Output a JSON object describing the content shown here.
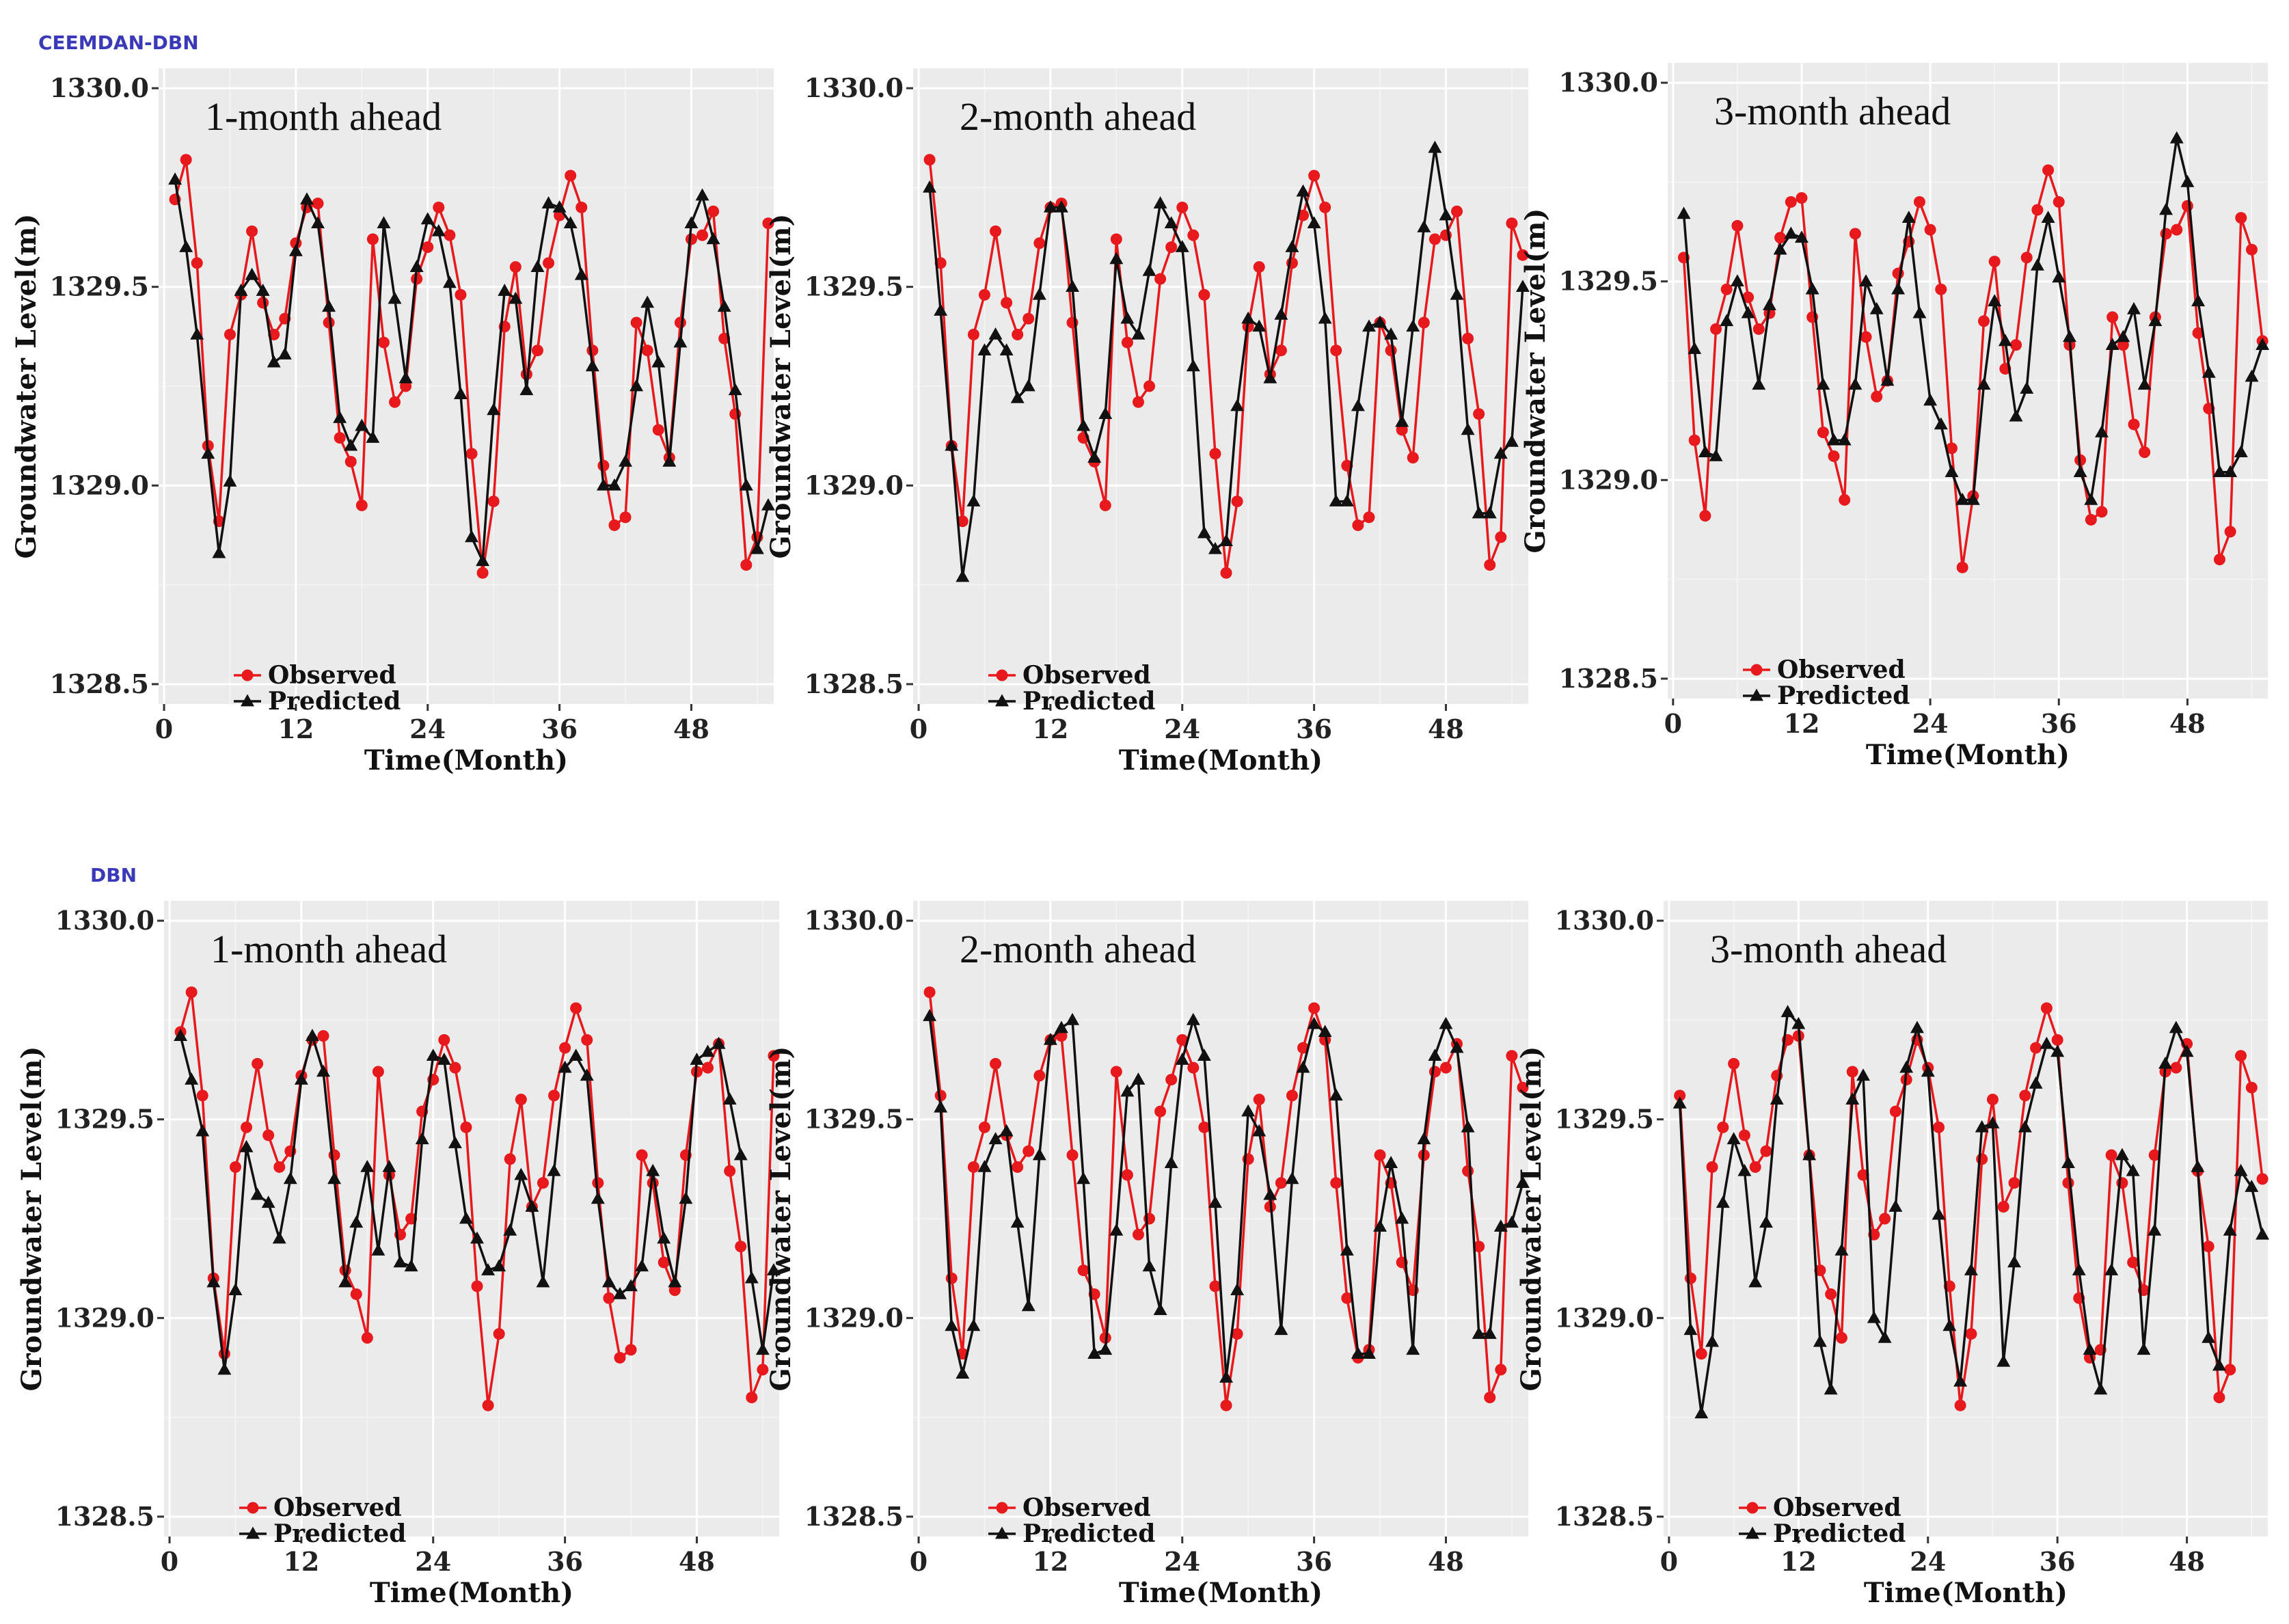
{
  "sections": [
    {
      "label": "CEEMDAN-DBN"
    },
    {
      "label": "DBN"
    }
  ],
  "chart_data": [
    {
      "type": "line",
      "title": "1-month ahead",
      "section": "CEEMDAN-DBN",
      "xlabel": "Time(Month)",
      "ylabel": "Groundwater Level(m)",
      "xlim": [
        -0.5,
        55.5
      ],
      "ylim": [
        1328.45,
        1330.05
      ],
      "xticks": [
        0,
        12,
        24,
        36,
        48
      ],
      "yticks": [
        1328.5,
        1329.0,
        1329.5,
        1330.0
      ],
      "ytick_labels": [
        "1328.5",
        "1329.0",
        "1329.5",
        "1330.0"
      ],
      "legend": [
        "Observed",
        "Predicted"
      ],
      "series": [
        {
          "name": "Observed",
          "color": "#e8191c",
          "marker": "circle",
          "values": [
            1329.72,
            1329.82,
            1329.56,
            1329.1,
            1328.91,
            1329.38,
            1329.48,
            1329.64,
            1329.46,
            1329.38,
            1329.42,
            1329.61,
            1329.7,
            1329.71,
            1329.41,
            1329.12,
            1329.06,
            1328.95,
            1329.62,
            1329.36,
            1329.21,
            1329.25,
            1329.52,
            1329.6,
            1329.7,
            1329.63,
            1329.48,
            1329.08,
            1328.78,
            1328.96,
            1329.4,
            1329.55,
            1329.28,
            1329.34,
            1329.56,
            1329.68,
            1329.78,
            1329.7,
            1329.34,
            1329.05,
            1328.9,
            1328.92,
            1329.41,
            1329.34,
            1329.14,
            1329.07,
            1329.41,
            1329.62,
            1329.63,
            1329.69,
            1329.37,
            1329.18,
            1328.8,
            1328.87,
            1329.66
          ]
        },
        {
          "name": "Predicted",
          "color": "#111111",
          "marker": "triangle",
          "values": [
            1329.77,
            1329.6,
            1329.38,
            1329.08,
            1328.83,
            1329.01,
            1329.49,
            1329.53,
            1329.49,
            1329.31,
            1329.33,
            1329.59,
            1329.72,
            1329.66,
            1329.45,
            1329.17,
            1329.1,
            1329.15,
            1329.12,
            1329.66,
            1329.47,
            1329.27,
            1329.55,
            1329.67,
            1329.64,
            1329.51,
            1329.23,
            1328.87,
            1328.81,
            1329.19,
            1329.49,
            1329.47,
            1329.24,
            1329.55,
            1329.71,
            1329.7,
            1329.66,
            1329.53,
            1329.3,
            1329.0,
            1329.0,
            1329.06,
            1329.25,
            1329.46,
            1329.31,
            1329.06,
            1329.36,
            1329.66,
            1329.73,
            1329.62,
            1329.45,
            1329.24,
            1329.0,
            1328.84,
            1328.95
          ]
        }
      ]
    },
    {
      "type": "line",
      "title": "2-month ahead",
      "section": "CEEMDAN-DBN",
      "xlabel": "Time(Month)",
      "ylabel": "Groundwater Level(m)",
      "xlim": [
        -0.5,
        55.5
      ],
      "ylim": [
        1328.45,
        1330.05
      ],
      "xticks": [
        0,
        12,
        24,
        36,
        48
      ],
      "yticks": [
        1328.5,
        1329.0,
        1329.5,
        1330.0
      ],
      "ytick_labels": [
        "1328.5",
        "1329.0",
        "1329.5",
        "1330.0"
      ],
      "legend": [
        "Observed",
        "Predicted"
      ],
      "series": [
        {
          "name": "Observed",
          "color": "#e8191c",
          "marker": "circle",
          "values": [
            1329.82,
            1329.56,
            1329.1,
            1328.91,
            1329.38,
            1329.48,
            1329.64,
            1329.46,
            1329.38,
            1329.42,
            1329.61,
            1329.7,
            1329.71,
            1329.41,
            1329.12,
            1329.06,
            1328.95,
            1329.62,
            1329.36,
            1329.21,
            1329.25,
            1329.52,
            1329.6,
            1329.7,
            1329.63,
            1329.48,
            1329.08,
            1328.78,
            1328.96,
            1329.4,
            1329.55,
            1329.28,
            1329.34,
            1329.56,
            1329.68,
            1329.78,
            1329.7,
            1329.34,
            1329.05,
            1328.9,
            1328.92,
            1329.41,
            1329.34,
            1329.14,
            1329.07,
            1329.41,
            1329.62,
            1329.63,
            1329.69,
            1329.37,
            1329.18,
            1328.8,
            1328.87,
            1329.66,
            1329.58
          ]
        },
        {
          "name": "Predicted",
          "color": "#111111",
          "marker": "triangle",
          "values": [
            1329.75,
            1329.44,
            1329.1,
            1328.77,
            1328.96,
            1329.34,
            1329.38,
            1329.34,
            1329.22,
            1329.25,
            1329.48,
            1329.7,
            1329.7,
            1329.5,
            1329.15,
            1329.07,
            1329.18,
            1329.57,
            1329.42,
            1329.38,
            1329.54,
            1329.71,
            1329.66,
            1329.6,
            1329.3,
            1328.88,
            1328.84,
            1328.86,
            1329.2,
            1329.42,
            1329.4,
            1329.27,
            1329.43,
            1329.6,
            1329.74,
            1329.66,
            1329.42,
            1328.96,
            1328.96,
            1329.2,
            1329.4,
            1329.41,
            1329.38,
            1329.16,
            1329.4,
            1329.65,
            1329.85,
            1329.68,
            1329.48,
            1329.14,
            1328.93,
            1328.93,
            1329.08,
            1329.11,
            1329.5
          ]
        }
      ]
    },
    {
      "type": "line",
      "title": "3-month ahead",
      "section": "CEEMDAN-DBN",
      "xlabel": "Time(Month)",
      "ylabel": "Groundwater Level(m)",
      "xlim": [
        -0.5,
        55.5
      ],
      "ylim": [
        1328.45,
        1330.05
      ],
      "xticks": [
        0,
        12,
        24,
        36,
        48
      ],
      "yticks": [
        1328.5,
        1329.0,
        1329.5,
        1330.0
      ],
      "ytick_labels": [
        "1328.5",
        "1329.0",
        "1329.5",
        "1330.0"
      ],
      "legend": [
        "Observed",
        "Predicted"
      ],
      "series": [
        {
          "name": "Observed",
          "color": "#e8191c",
          "marker": "circle",
          "values": [
            1329.56,
            1329.1,
            1328.91,
            1329.38,
            1329.48,
            1329.64,
            1329.46,
            1329.38,
            1329.42,
            1329.61,
            1329.7,
            1329.71,
            1329.41,
            1329.12,
            1329.06,
            1328.95,
            1329.62,
            1329.36,
            1329.21,
            1329.25,
            1329.52,
            1329.6,
            1329.7,
            1329.63,
            1329.48,
            1329.08,
            1328.78,
            1328.96,
            1329.4,
            1329.55,
            1329.28,
            1329.34,
            1329.56,
            1329.68,
            1329.78,
            1329.7,
            1329.34,
            1329.05,
            1328.9,
            1328.92,
            1329.41,
            1329.34,
            1329.14,
            1329.07,
            1329.41,
            1329.62,
            1329.63,
            1329.69,
            1329.37,
            1329.18,
            1328.8,
            1328.87,
            1329.66,
            1329.58,
            1329.35
          ]
        },
        {
          "name": "Predicted",
          "color": "#111111",
          "marker": "triangle",
          "values": [
            1329.67,
            1329.33,
            1329.07,
            1329.06,
            1329.4,
            1329.5,
            1329.42,
            1329.24,
            1329.44,
            1329.58,
            1329.62,
            1329.61,
            1329.48,
            1329.24,
            1329.1,
            1329.1,
            1329.24,
            1329.5,
            1329.43,
            1329.25,
            1329.48,
            1329.66,
            1329.42,
            1329.2,
            1329.14,
            1329.02,
            1328.95,
            1328.95,
            1329.24,
            1329.45,
            1329.35,
            1329.16,
            1329.23,
            1329.54,
            1329.66,
            1329.51,
            1329.36,
            1329.02,
            1328.95,
            1329.12,
            1329.34,
            1329.36,
            1329.43,
            1329.24,
            1329.4,
            1329.68,
            1329.86,
            1329.75,
            1329.45,
            1329.27,
            1329.02,
            1329.02,
            1329.07,
            1329.26,
            1329.34
          ]
        }
      ]
    },
    {
      "type": "line",
      "title": "1-month ahead",
      "section": "DBN",
      "xlabel": "Time(Month)",
      "ylabel": "Groundwater Level(m)",
      "xlim": [
        -0.5,
        55.5
      ],
      "ylim": [
        1328.45,
        1330.05
      ],
      "xticks": [
        0,
        12,
        24,
        36,
        48
      ],
      "yticks": [
        1328.5,
        1329.0,
        1329.5,
        1330.0
      ],
      "ytick_labels": [
        "1328.5",
        "1329.0",
        "1329.5",
        "1330.0"
      ],
      "legend": [
        "Observed",
        "Predicted"
      ],
      "series": [
        {
          "name": "Observed",
          "color": "#e8191c",
          "marker": "circle",
          "values": [
            1329.72,
            1329.82,
            1329.56,
            1329.1,
            1328.91,
            1329.38,
            1329.48,
            1329.64,
            1329.46,
            1329.38,
            1329.42,
            1329.61,
            1329.7,
            1329.71,
            1329.41,
            1329.12,
            1329.06,
            1328.95,
            1329.62,
            1329.36,
            1329.21,
            1329.25,
            1329.52,
            1329.6,
            1329.7,
            1329.63,
            1329.48,
            1329.08,
            1328.78,
            1328.96,
            1329.4,
            1329.55,
            1329.28,
            1329.34,
            1329.56,
            1329.68,
            1329.78,
            1329.7,
            1329.34,
            1329.05,
            1328.9,
            1328.92,
            1329.41,
            1329.34,
            1329.14,
            1329.07,
            1329.41,
            1329.62,
            1329.63,
            1329.69,
            1329.37,
            1329.18,
            1328.8,
            1328.87,
            1329.66
          ]
        },
        {
          "name": "Predicted",
          "color": "#111111",
          "marker": "triangle",
          "values": [
            1329.71,
            1329.6,
            1329.47,
            1329.09,
            1328.87,
            1329.07,
            1329.43,
            1329.31,
            1329.29,
            1329.2,
            1329.35,
            1329.6,
            1329.71,
            1329.62,
            1329.35,
            1329.09,
            1329.24,
            1329.38,
            1329.17,
            1329.38,
            1329.14,
            1329.13,
            1329.45,
            1329.66,
            1329.65,
            1329.44,
            1329.25,
            1329.2,
            1329.12,
            1329.13,
            1329.22,
            1329.36,
            1329.28,
            1329.09,
            1329.37,
            1329.63,
            1329.66,
            1329.61,
            1329.3,
            1329.09,
            1329.06,
            1329.08,
            1329.13,
            1329.37,
            1329.2,
            1329.09,
            1329.3,
            1329.65,
            1329.67,
            1329.69,
            1329.55,
            1329.41,
            1329.1,
            1328.92,
            1329.12
          ]
        }
      ]
    },
    {
      "type": "line",
      "title": "2-month ahead",
      "section": "DBN",
      "xlabel": "Time(Month)",
      "ylabel": "Groundwater Level(m)",
      "xlim": [
        -0.5,
        55.5
      ],
      "ylim": [
        1328.45,
        1330.05
      ],
      "xticks": [
        0,
        12,
        24,
        36,
        48
      ],
      "yticks": [
        1328.5,
        1329.0,
        1329.5,
        1330.0
      ],
      "ytick_labels": [
        "1328.5",
        "1329.0",
        "1329.5",
        "1330.0"
      ],
      "legend": [
        "Observed",
        "Predicted"
      ],
      "series": [
        {
          "name": "Observed",
          "color": "#e8191c",
          "marker": "circle",
          "values": [
            1329.82,
            1329.56,
            1329.1,
            1328.91,
            1329.38,
            1329.48,
            1329.64,
            1329.46,
            1329.38,
            1329.42,
            1329.61,
            1329.7,
            1329.71,
            1329.41,
            1329.12,
            1329.06,
            1328.95,
            1329.62,
            1329.36,
            1329.21,
            1329.25,
            1329.52,
            1329.6,
            1329.7,
            1329.63,
            1329.48,
            1329.08,
            1328.78,
            1328.96,
            1329.4,
            1329.55,
            1329.28,
            1329.34,
            1329.56,
            1329.68,
            1329.78,
            1329.7,
            1329.34,
            1329.05,
            1328.9,
            1328.92,
            1329.41,
            1329.34,
            1329.14,
            1329.07,
            1329.41,
            1329.62,
            1329.63,
            1329.69,
            1329.37,
            1329.18,
            1328.8,
            1328.87,
            1329.66,
            1329.58
          ]
        },
        {
          "name": "Predicted",
          "color": "#111111",
          "marker": "triangle",
          "values": [
            1329.76,
            1329.53,
            1328.98,
            1328.86,
            1328.98,
            1329.38,
            1329.45,
            1329.47,
            1329.24,
            1329.03,
            1329.41,
            1329.7,
            1329.73,
            1329.75,
            1329.35,
            1328.91,
            1328.92,
            1329.22,
            1329.57,
            1329.6,
            1329.13,
            1329.02,
            1329.39,
            1329.65,
            1329.75,
            1329.66,
            1329.29,
            1328.85,
            1329.07,
            1329.52,
            1329.47,
            1329.31,
            1328.97,
            1329.35,
            1329.63,
            1329.74,
            1329.72,
            1329.56,
            1329.17,
            1328.91,
            1328.91,
            1329.23,
            1329.39,
            1329.25,
            1328.92,
            1329.45,
            1329.66,
            1329.74,
            1329.68,
            1329.48,
            1328.96,
            1328.96,
            1329.23,
            1329.24,
            1329.34
          ]
        }
      ]
    },
    {
      "type": "line",
      "title": "3-month ahead",
      "section": "DBN",
      "xlabel": "Time(Month)",
      "ylabel": "Groundwater Level(m)",
      "xlim": [
        -0.5,
        55.5
      ],
      "ylim": [
        1328.45,
        1330.05
      ],
      "xticks": [
        0,
        12,
        24,
        36,
        48
      ],
      "yticks": [
        1328.5,
        1329.0,
        1329.5,
        1330.0
      ],
      "ytick_labels": [
        "1328.5",
        "1329.0",
        "1329.5",
        "1330.0"
      ],
      "legend": [
        "Observed",
        "Predicted"
      ],
      "series": [
        {
          "name": "Observed",
          "color": "#e8191c",
          "marker": "circle",
          "values": [
            1329.56,
            1329.1,
            1328.91,
            1329.38,
            1329.48,
            1329.64,
            1329.46,
            1329.38,
            1329.42,
            1329.61,
            1329.7,
            1329.71,
            1329.41,
            1329.12,
            1329.06,
            1328.95,
            1329.62,
            1329.36,
            1329.21,
            1329.25,
            1329.52,
            1329.6,
            1329.7,
            1329.63,
            1329.48,
            1329.08,
            1328.78,
            1328.96,
            1329.4,
            1329.55,
            1329.28,
            1329.34,
            1329.56,
            1329.68,
            1329.78,
            1329.7,
            1329.34,
            1329.05,
            1328.9,
            1328.92,
            1329.41,
            1329.34,
            1329.14,
            1329.07,
            1329.41,
            1329.62,
            1329.63,
            1329.69,
            1329.37,
            1329.18,
            1328.8,
            1328.87,
            1329.66,
            1329.58,
            1329.35
          ]
        },
        {
          "name": "Predicted",
          "color": "#111111",
          "marker": "triangle",
          "values": [
            1329.54,
            1328.97,
            1328.76,
            1328.94,
            1329.29,
            1329.45,
            1329.37,
            1329.09,
            1329.24,
            1329.55,
            1329.77,
            1329.74,
            1329.41,
            1328.94,
            1328.82,
            1329.17,
            1329.55,
            1329.61,
            1329.0,
            1328.95,
            1329.28,
            1329.63,
            1329.73,
            1329.62,
            1329.26,
            1328.98,
            1328.84,
            1329.12,
            1329.48,
            1329.49,
            1328.89,
            1329.14,
            1329.48,
            1329.59,
            1329.69,
            1329.67,
            1329.39,
            1329.12,
            1328.92,
            1328.82,
            1329.12,
            1329.41,
            1329.37,
            1328.92,
            1329.22,
            1329.64,
            1329.73,
            1329.67,
            1329.38,
            1328.95,
            1328.88,
            1329.22,
            1329.37,
            1329.33,
            1329.21
          ]
        }
      ]
    }
  ]
}
